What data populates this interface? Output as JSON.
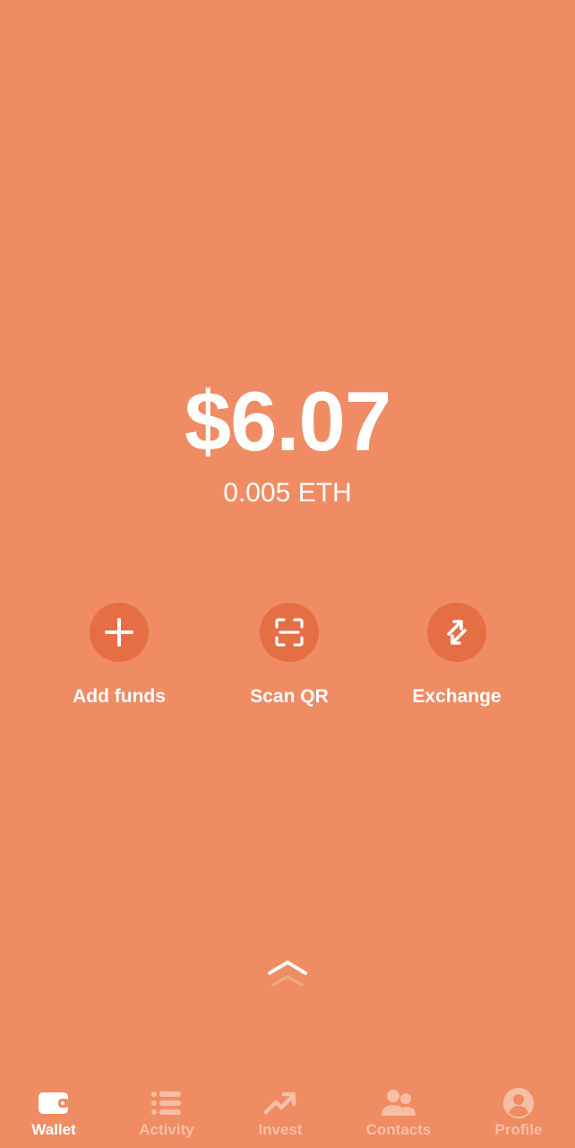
{
  "colors": {
    "background": "#EF8C63",
    "action_circle": "#E66E45",
    "active": "#FFFFFF",
    "inactive": "#F6BFA5"
  },
  "balance": {
    "fiat": "$6.07",
    "crypto": "0.005 ETH"
  },
  "actions": [
    {
      "label": "Add funds",
      "icon": "plus-icon"
    },
    {
      "label": "Scan QR",
      "icon": "qr-scan-icon"
    },
    {
      "label": "Exchange",
      "icon": "exchange-arrows-icon"
    }
  ],
  "swipe_hint": {
    "icon": "chevron-up-icon"
  },
  "bottom_nav": {
    "active": "Wallet",
    "items": [
      {
        "label": "Wallet",
        "icon": "wallet-icon"
      },
      {
        "label": "Activity",
        "icon": "list-icon"
      },
      {
        "label": "Invest",
        "icon": "trending-up-icon"
      },
      {
        "label": "Contacts",
        "icon": "contacts-icon"
      },
      {
        "label": "Profile",
        "icon": "profile-icon"
      }
    ]
  }
}
